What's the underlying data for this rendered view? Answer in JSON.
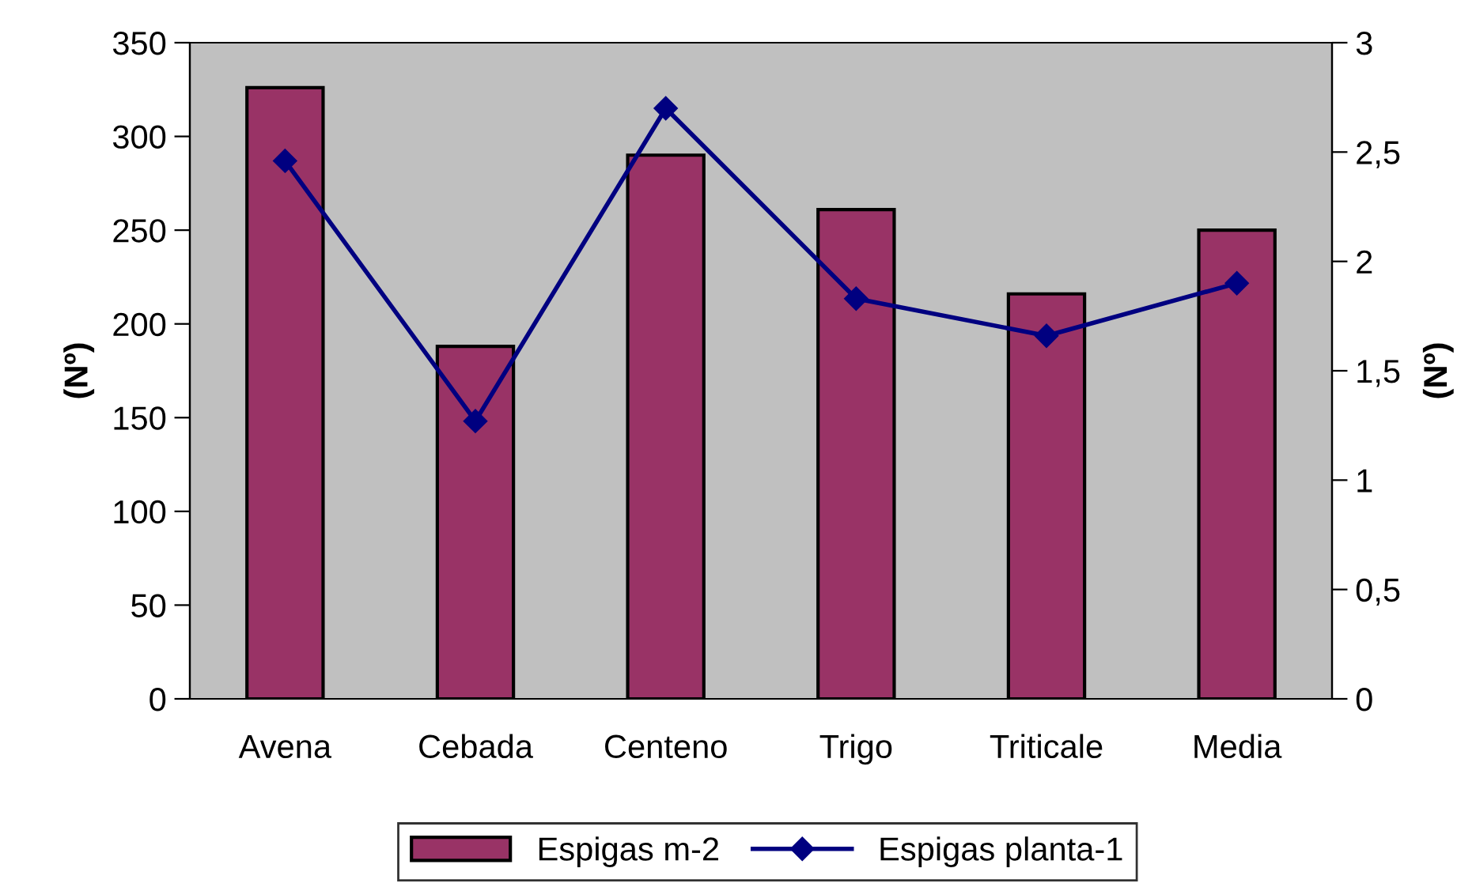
{
  "chart_data": {
    "type": "bar",
    "categories": [
      "Avena",
      "Cebada",
      "Centeno",
      "Trigo",
      "Triticale",
      "Media"
    ],
    "series": [
      {
        "name": "Espigas m-2",
        "color": "#993366",
        "values": [
          326,
          188,
          290,
          261,
          216,
          250
        ]
      },
      {
        "name": "Espigas planta-1",
        "type": "line",
        "axis": "y2",
        "color": "#000080",
        "values": [
          2.46,
          1.27,
          2.7,
          1.83,
          1.66,
          1.9
        ]
      }
    ],
    "ylabel": "(Nº)",
    "y2label": "(Nº)",
    "ylim": [
      0,
      350
    ],
    "yticks": [
      0,
      50,
      100,
      150,
      200,
      250,
      300,
      350
    ],
    "y2lim": [
      0,
      3
    ],
    "y2ticks": [
      0,
      {
        "value": 0.5,
        "label": "0,5"
      },
      1,
      {
        "value": 1.5,
        "label": "1,5"
      },
      2,
      {
        "value": 2.5,
        "label": "2,5"
      },
      3
    ],
    "marker": "diamond",
    "line_style": "solid",
    "grid": false,
    "legend": "bottom"
  }
}
